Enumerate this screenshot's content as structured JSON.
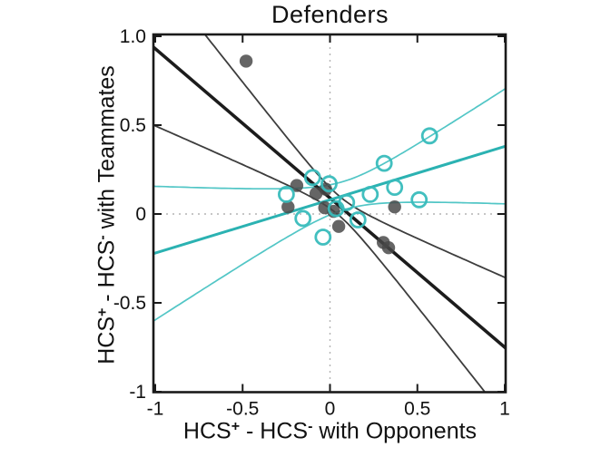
{
  "figure": {
    "title": "Defenders",
    "xlabel_parts": {
      "a": "HCS",
      "a_sup": "+",
      "b": " - HCS",
      "b_sup": "-",
      "c": " with Opponents"
    },
    "ylabel_parts": {
      "a": "HCS",
      "a_sup": "+",
      "b": " - HCS",
      "b_sup": "-",
      "c": " with Teammates"
    }
  },
  "chart_data": {
    "type": "scatter",
    "title": "Defenders",
    "xlabel": "HCS+ - HCS- with Opponents",
    "ylabel": "HCS+ - HCS- with Teammates",
    "xlim": [
      -1,
      1
    ],
    "ylim": [
      -1,
      1
    ],
    "grid": false,
    "legend": "none",
    "zero_reference_lines": true,
    "zero_line_color": "#b4b4b4",
    "frame_color": "#1a1a1a",
    "xticks": {
      "values": [
        -1,
        -0.5,
        0,
        0.5,
        1
      ],
      "labels": [
        "-1",
        "-0.5",
        "0",
        "0.5",
        "1"
      ]
    },
    "yticks": {
      "values": [
        1,
        0.5,
        0,
        -0.5,
        -1
      ],
      "labels": [
        "1.0",
        "0.5",
        "0",
        "-0.5",
        "-1"
      ]
    },
    "series": [
      {
        "name": "dark-filled-points",
        "marker": "filled-circle",
        "color": "#474747",
        "points": [
          [
            -0.48,
            0.86
          ],
          [
            -0.19,
            0.16
          ],
          [
            -0.24,
            0.04
          ],
          [
            -0.08,
            0.115
          ],
          [
            -0.025,
            0.14
          ],
          [
            -0.03,
            0.035
          ],
          [
            0.02,
            0.015
          ],
          [
            0.05,
            -0.07
          ],
          [
            0.37,
            0.04
          ],
          [
            0.305,
            -0.16
          ],
          [
            0.335,
            -0.19
          ]
        ],
        "fit_line": {
          "slope": -0.84,
          "intercept": 0.09,
          "color": "#1c1c1c"
        },
        "ci": {
          "center_x": 0.05,
          "a": 0.055,
          "c": 0.41,
          "color": "#3d3d3d"
        }
      },
      {
        "name": "teal-open-points",
        "marker": "open-circle",
        "color": "#38bcbc",
        "points": [
          [
            -0.25,
            0.11
          ],
          [
            -0.1,
            0.205
          ],
          [
            -0.005,
            0.17
          ],
          [
            0.035,
            0.03
          ],
          [
            0.095,
            0.065
          ],
          [
            -0.155,
            -0.025
          ],
          [
            -0.04,
            -0.13
          ],
          [
            0.16,
            -0.033
          ],
          [
            0.23,
            0.11
          ],
          [
            0.31,
            0.285
          ],
          [
            0.37,
            0.15
          ],
          [
            0.51,
            0.08
          ],
          [
            0.57,
            0.44
          ]
        ],
        "fit_line": {
          "slope": 0.3,
          "intercept": 0.08,
          "color": "#2bb2b2"
        },
        "ci": {
          "center_x": 0.08,
          "a": 0.08,
          "c": 0.34,
          "color": "#52c6c6"
        }
      }
    ]
  }
}
